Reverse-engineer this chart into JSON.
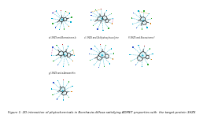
{
  "title": "Figure 1: 2D interaction of phytochemicals in Boerhavia diffusa satisfying ADMET properties with  the target protein 3HZS",
  "title_fontsize": 2.8,
  "background_color": "#ffffff",
  "panel_labels": [
    "a) 3HZS and Boeravinone-b",
    "c) 3HZS and 2b-Hydroxyleucolyine",
    "f) 3HZS and Boeravinone-f",
    "g) 3HZS and a-Amaranthin",
    "",
    ""
  ],
  "residue_colors": {
    "blue": "#3355cc",
    "cyan": "#00aacc",
    "green": "#33aa33",
    "red": "#cc3333",
    "orange": "#dd7700",
    "pink": "#cc44aa",
    "teal": "#009999",
    "gray": "#888888"
  },
  "mol_color": "#333333",
  "dash_color1": "#00aacc",
  "dash_color2": "#cc8800",
  "dash_color3": "#cc44aa"
}
